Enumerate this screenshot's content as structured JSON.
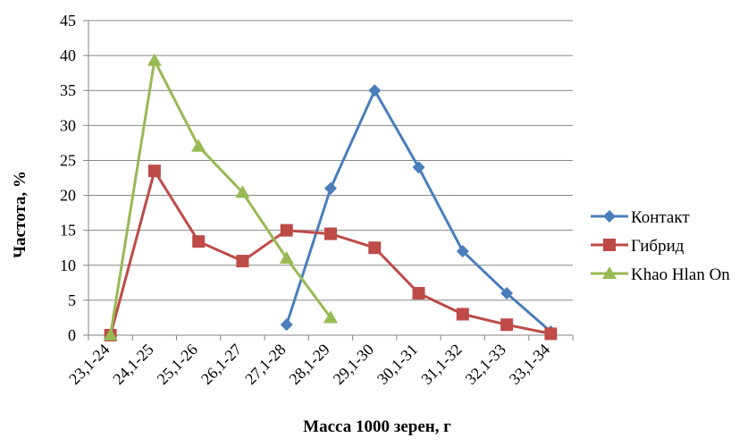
{
  "chart_data": {
    "type": "line",
    "title": "",
    "xlabel": "Масса 1000 зерен, г",
    "ylabel": "Частота,  %",
    "ylim": [
      0,
      45
    ],
    "ytick_step": 5,
    "grid": "horizontal",
    "legend_placement": "right",
    "categories": [
      "23,1-24",
      "24,1-25",
      "25,1-26",
      "26,1-27",
      "27,1-28",
      "28,1-29",
      "29,1-30",
      "30,1-31",
      "31,1-32",
      "32,1-33",
      "33,1-34"
    ],
    "series": [
      {
        "name": "Контакт",
        "color": "#4a7ebb",
        "marker": "diamond",
        "values": [
          null,
          null,
          null,
          null,
          1.5,
          21,
          35,
          24,
          12,
          6,
          0.5
        ]
      },
      {
        "name": "Гибрид",
        "color": "#be4b48",
        "marker": "square",
        "values": [
          0,
          23.5,
          13.4,
          10.6,
          15,
          14.5,
          12.5,
          6,
          3,
          1.5,
          0.2
        ]
      },
      {
        "name": "Khao Hlan On",
        "color": "#98b954",
        "marker": "triangle",
        "values": [
          0,
          39.3,
          27,
          20.4,
          11,
          2.5,
          null,
          null,
          null,
          null,
          null
        ]
      }
    ]
  }
}
